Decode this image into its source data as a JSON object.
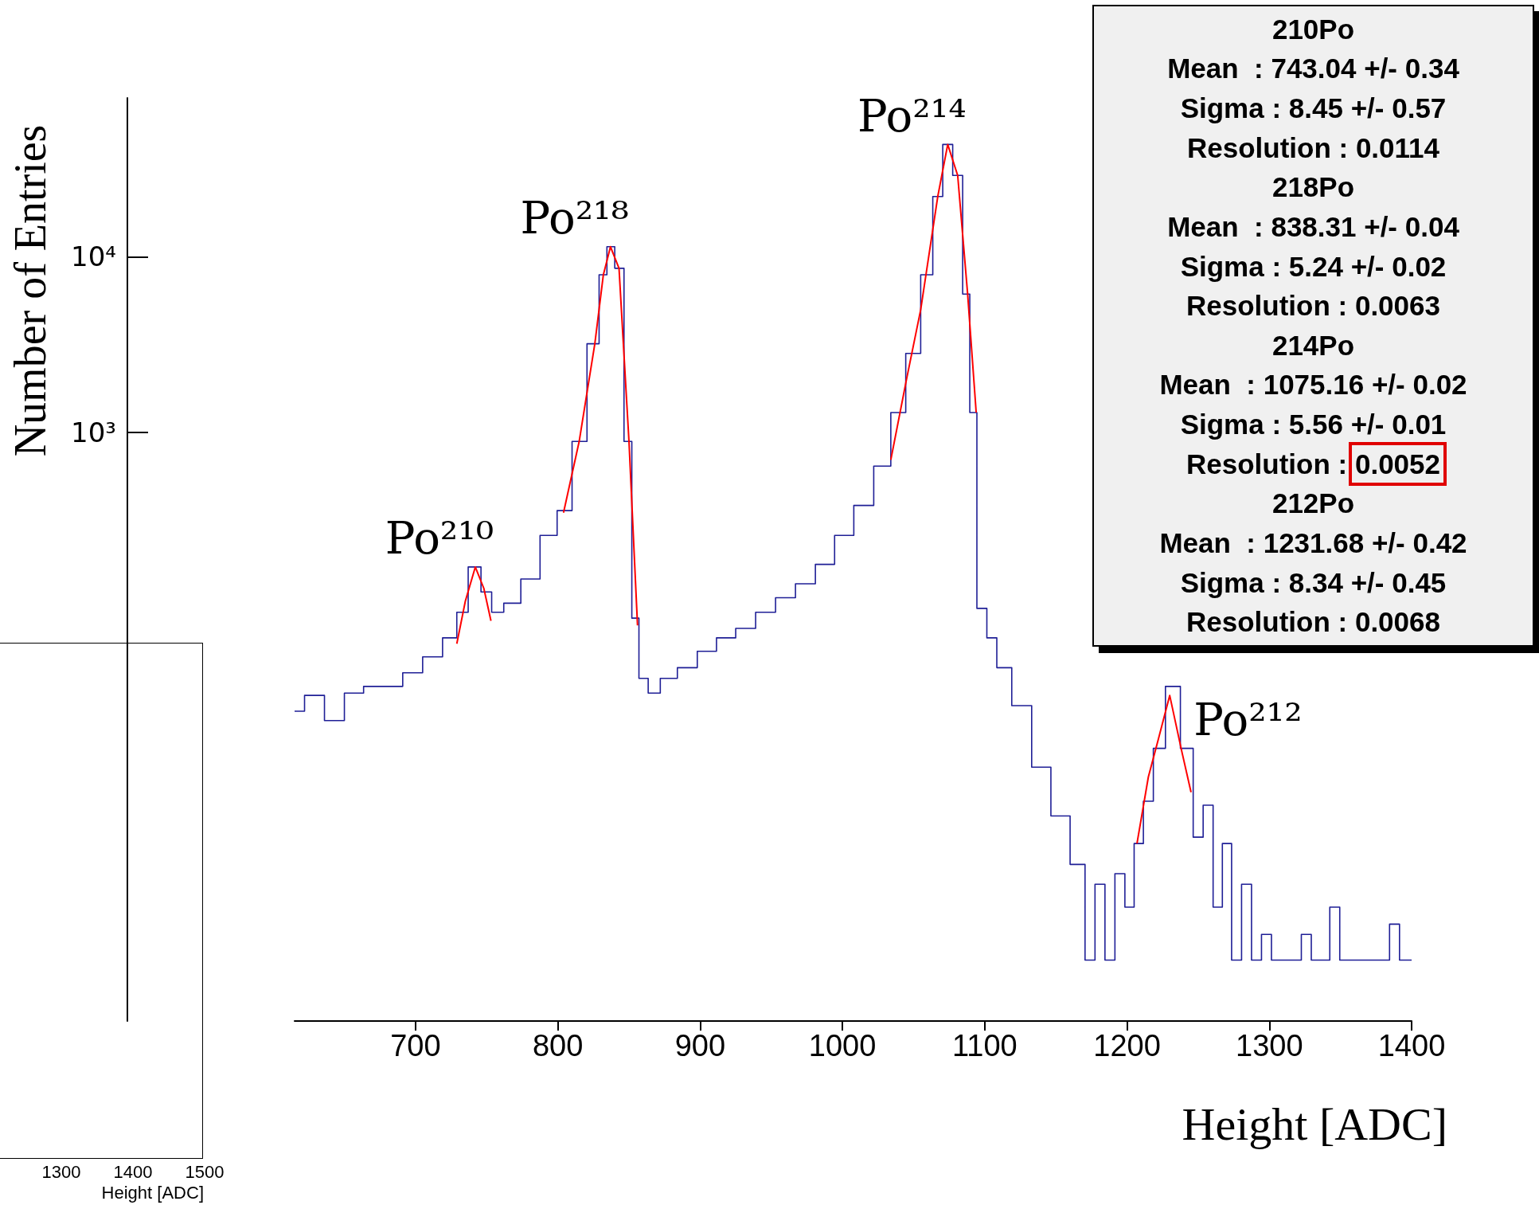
{
  "chart_data": [
    {
      "type": "step",
      "ylabel": "Number of Entries",
      "xlabel": "Height [ADC]",
      "log": "y",
      "grid": false,
      "marker": "none",
      "line_style": "solid",
      "xlim": [
        615,
        1400
      ],
      "xticks": [
        700,
        800,
        900,
        1000,
        1100,
        1200,
        1300,
        1400
      ],
      "ylim": [
        0.45,
        80000
      ],
      "yticks": [
        {
          "value": 1000,
          "label": "10³"
        },
        {
          "value": 10000,
          "label": "10⁴"
        }
      ],
      "series": [
        {
          "color": "#1f1f96",
          "x": [
            615,
            629,
            643,
            657,
            670,
            684,
            698,
            712,
            726,
            732,
            742,
            750,
            757,
            767,
            781,
            794,
            805,
            815,
            826,
            832,
            837,
            843,
            850,
            854,
            860,
            867,
            877,
            891,
            905,
            918,
            932,
            946,
            960,
            974,
            988,
            1001,
            1015,
            1029,
            1039,
            1050,
            1060,
            1067,
            1074,
            1081,
            1088,
            1091,
            1098,
            1105,
            1112,
            1126,
            1140,
            1153,
            1167,
            1174,
            1181,
            1188,
            1195,
            1202,
            1208,
            1215,
            1222,
            1232,
            1243,
            1250,
            1257,
            1264,
            1270,
            1277,
            1284,
            1291,
            1298,
            1305,
            1312,
            1319,
            1326,
            1333,
            1339,
            1346,
            1353,
            1360,
            1367,
            1374,
            1381,
            1388,
            1395,
            1400
          ],
          "values": [
            26,
            32,
            23,
            33,
            36,
            36,
            43,
            53,
            68,
            95,
            172,
            124,
            95,
            107,
            147,
            260,
            360,
            890,
            3200,
            7900,
            11400,
            8600,
            890,
            88,
            40,
            33,
            40,
            46,
            57,
            68,
            77,
            95,
            115,
            138,
            178,
            260,
            385,
            645,
            1300,
            2820,
            7900,
            22000,
            43500,
            29000,
            6130,
            1300,
            100,
            68,
            46,
            28,
            12.5,
            6.6,
            3.5,
            1,
            2.7,
            1,
            3.1,
            2,
            4.6,
            8,
            16,
            36,
            16,
            5,
            7.6,
            2,
            4.6,
            1,
            2.7,
            1,
            1.4,
            1,
            1,
            1,
            1.4,
            1,
            1,
            2,
            1,
            1,
            1,
            1,
            1,
            1.6,
            1,
            1
          ]
        },
        {
          "type": "line",
          "color": "#ff0000",
          "x": [
            729,
            735,
            742,
            748,
            753
          ],
          "values": [
            63,
            110,
            172,
            130,
            85
          ]
        },
        {
          "type": "line",
          "color": "#ff0000",
          "x": [
            804,
            815,
            826,
            832,
            837,
            843,
            850,
            856
          ],
          "values": [
            350,
            890,
            3200,
            7900,
            11400,
            8600,
            890,
            80
          ]
        },
        {
          "type": "line",
          "color": "#ff0000",
          "x": [
            1034,
            1045,
            1055,
            1067,
            1074,
            1081,
            1088,
            1094
          ],
          "values": [
            700,
            2000,
            5000,
            22000,
            43500,
            29000,
            6130,
            1300
          ]
        },
        {
          "type": "line",
          "color": "#ff0000",
          "x": [
            1207,
            1215,
            1222,
            1230,
            1238,
            1245
          ],
          "values": [
            4.6,
            11,
            18,
            32,
            16,
            9
          ]
        }
      ],
      "annotations": [
        {
          "text": "Po²¹⁰",
          "x": 742,
          "y": 172
        },
        {
          "text": "Po²¹⁸",
          "x": 837,
          "y": 11400
        },
        {
          "text": "Po²¹⁴",
          "x": 1074,
          "y": 43500
        },
        {
          "text": "Po²¹²",
          "x": 1230,
          "y": 32
        },
        "210Po",
        "Mean  : 743.04 +/- 0.34",
        "Sigma : 8.45 +/- 0.57",
        "Resolution : 0.0114",
        "218Po",
        "Mean  : 838.31 +/- 0.04",
        "Sigma : 5.24 +/- 0.02",
        "Resolution : 0.0063",
        "214Po",
        "Mean  : 1075.16 +/- 0.02",
        "Sigma : 5.56 +/- 0.01",
        "Resolution : 0.0052",
        "212Po",
        "Mean  : 1231.68 +/- 0.42",
        "Sigma : 8.34 +/- 0.45",
        "Resolution : 0.0068"
      ]
    },
    {
      "type": "other",
      "xlabel": "Height [ADC]",
      "annotations": [
        "1300",
        "1400",
        "1500"
      ]
    }
  ]
}
